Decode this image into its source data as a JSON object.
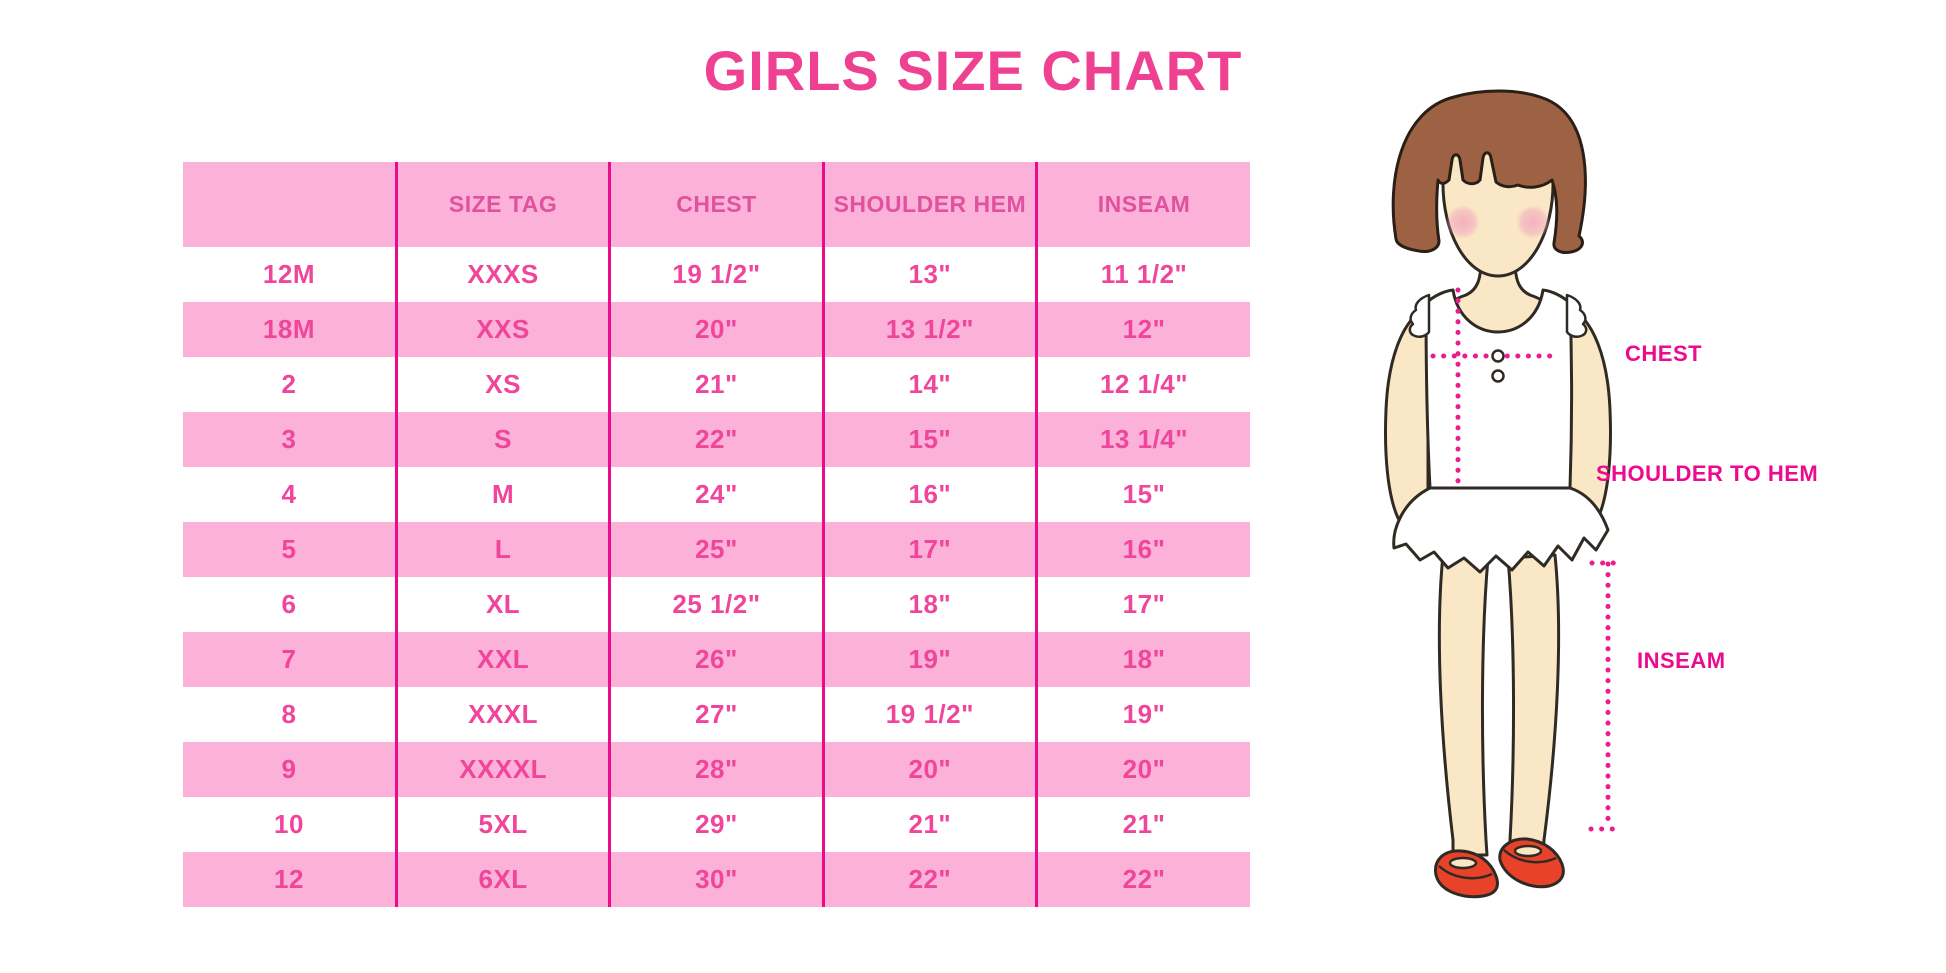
{
  "title": "GIRLS SIZE CHART",
  "chart_data": {
    "type": "table",
    "title": "GIRLS SIZE CHART",
    "columns": [
      "",
      "SIZE TAG",
      "CHEST",
      "SHOULDER HEM",
      "INSEAM"
    ],
    "rows": [
      [
        "12M",
        "XXXS",
        "19 1/2\"",
        "13\"",
        "11 1/2\""
      ],
      [
        "18M",
        "XXS",
        "20\"",
        "13 1/2\"",
        "12\""
      ],
      [
        "2",
        "XS",
        "21\"",
        "14\"",
        "12 1/4\""
      ],
      [
        "3",
        "S",
        "22\"",
        "15\"",
        "13 1/4\""
      ],
      [
        "4",
        "M",
        "24\"",
        "16\"",
        "15\""
      ],
      [
        "5",
        "L",
        "25\"",
        "17\"",
        "16\""
      ],
      [
        "6",
        "XL",
        "25 1/2\"",
        "18\"",
        "17\""
      ],
      [
        "7",
        "XXL",
        "26\"",
        "19\"",
        "18\""
      ],
      [
        "8",
        "XXXL",
        "27\"",
        "19 1/2\"",
        "19\""
      ],
      [
        "9",
        "XXXXL",
        "28\"",
        "20\"",
        "20\""
      ],
      [
        "10",
        "5XL",
        "29\"",
        "21\"",
        "21\""
      ],
      [
        "12",
        "6XL",
        "30\"",
        "22\"",
        "22\""
      ]
    ],
    "row_striping": [
      "white",
      "pink"
    ],
    "grid": "column-dividers-only",
    "legend_position": "none"
  },
  "figure": {
    "name": "girl-measurement-illustration",
    "labels": {
      "chest": "CHEST",
      "shoulder_to_hem": "SHOULDER TO HEM",
      "inseam": "INSEAM"
    }
  },
  "colors": {
    "title_pink": "#EE4191",
    "band_pink": "#FBB1D8",
    "header_text_pink": "#E0519E",
    "cell_text_pink": "#F0459B",
    "divider_magenta": "#EB0C8C",
    "label_magenta": "#EC0A8E",
    "dotted_line_magenta": "#EC1C90",
    "hair_brown": "#9D6243",
    "skin": "#FAE7C5",
    "blush": "#F2ACBE",
    "shoe_red": "#E8432A",
    "outline": "#2F2A24"
  }
}
